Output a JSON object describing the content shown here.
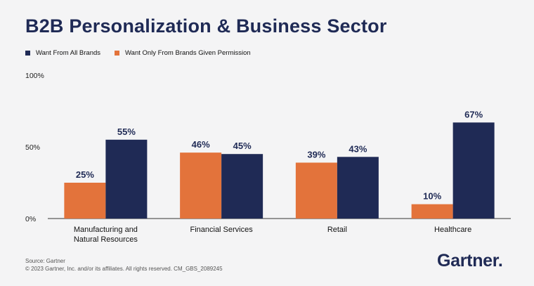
{
  "title": "B2B Personalization & Business Sector",
  "legend": [
    {
      "label": "Want From All Brands",
      "color": "#1f2a55"
    },
    {
      "label": "Want Only From Brands Given Permission",
      "color": "#e3733b"
    }
  ],
  "chart_data": {
    "type": "bar",
    "title": "B2B Personalization & Business Sector",
    "categories": [
      "Manufacturing and Natural Resources",
      "Financial Services",
      "Retail",
      "Healthcare"
    ],
    "category_lines": [
      [
        "Manufacturing and",
        "Natural Resources"
      ],
      [
        "Financial Services"
      ],
      [
        "Retail"
      ],
      [
        "Healthcare"
      ]
    ],
    "series": [
      {
        "name": "Want Only From Brands Given Permission",
        "color": "#e3733b",
        "values": [
          25,
          46,
          39,
          10
        ]
      },
      {
        "name": "Want From All Brands",
        "color": "#1f2a55",
        "values": [
          55,
          45,
          43,
          67
        ]
      }
    ],
    "data_labels": [
      [
        "25%",
        "46%",
        "39%",
        "10%"
      ],
      [
        "55%",
        "45%",
        "43%",
        "67%"
      ]
    ],
    "y_ticks": [
      0,
      50,
      100
    ],
    "y_tick_labels": [
      "0%",
      "50%",
      "100%"
    ],
    "ylim": [
      0,
      100
    ],
    "xlabel": "",
    "ylabel": "",
    "legend_position": "top-left",
    "grid": false
  },
  "footer": {
    "source": "Source: Gartner",
    "copyright": "© 2023 Gartner, Inc. and/or its affiliates. All rights reserved. CM_GBS_2089245"
  },
  "logo": {
    "text": "Gartner",
    "dot": "."
  }
}
